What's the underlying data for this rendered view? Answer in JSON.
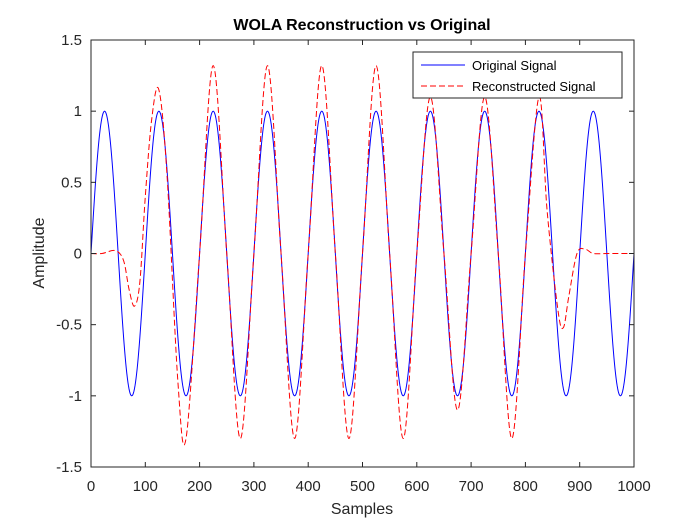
{
  "chart_data": {
    "type": "line",
    "title": "WOLA Reconstruction vs Original",
    "xlabel": "Samples",
    "ylabel": "Amplitude",
    "xlim": [
      0,
      1000
    ],
    "ylim": [
      -1.5,
      1.5
    ],
    "x_ticks": [
      "0",
      "100",
      "200",
      "300",
      "400",
      "500",
      "600",
      "700",
      "800",
      "900",
      "1000"
    ],
    "y_ticks": [
      "1.5",
      "1",
      "0.5",
      "0",
      "-0.5",
      "-1",
      "-1.5"
    ],
    "x_tick_values": [
      0,
      100,
      200,
      300,
      400,
      500,
      600,
      700,
      800,
      900,
      1000
    ],
    "y_tick_values": [
      1.5,
      1,
      0.5,
      0,
      -0.5,
      -1,
      -1.5
    ],
    "grid": false,
    "legend": "top-right",
    "series": [
      {
        "name": "Original Signal",
        "color": "#0000ff",
        "style": "solid",
        "kind": "sine",
        "amplitude": 1,
        "period": 100,
        "length": 1000,
        "x": [
          0,
          25,
          75,
          125,
          175,
          225,
          275,
          325,
          375,
          425,
          475,
          525,
          575,
          625,
          675,
          725,
          775,
          825,
          875,
          925,
          975,
          1000
        ],
        "values": [
          0,
          1,
          -1,
          1,
          -1,
          1,
          -1,
          1,
          -1,
          1,
          -1,
          1,
          -1,
          1,
          -1,
          1,
          -1,
          1,
          -1,
          1,
          -1,
          0
        ]
      },
      {
        "name": "Reconstructed Signal",
        "color": "#ff0000",
        "style": "dashed",
        "x": [
          0,
          20,
          45,
          60,
          70,
          80,
          90,
          100,
          112,
          125,
          140,
          160,
          175,
          200,
          225,
          250,
          275,
          300,
          325,
          350,
          375,
          400,
          425,
          450,
          475,
          500,
          525,
          550,
          575,
          600,
          625,
          650,
          675,
          700,
          725,
          750,
          775,
          800,
          825,
          840,
          860,
          870,
          880,
          895,
          910,
          925,
          950,
          1000
        ],
        "values": [
          0,
          0,
          0.02,
          -0.05,
          -0.25,
          -0.37,
          -0.2,
          0.4,
          0.95,
          1.15,
          0.55,
          -0.9,
          -1.3,
          0,
          1.32,
          0,
          -1.3,
          0,
          1.32,
          0,
          -1.3,
          0,
          1.32,
          0,
          -1.3,
          0,
          1.32,
          0,
          -1.3,
          0,
          1.1,
          0,
          -1.1,
          0,
          1.1,
          0,
          -1.3,
          0,
          1.1,
          0.3,
          -0.4,
          -0.52,
          -0.3,
          0,
          0.03,
          0,
          0,
          0
        ]
      }
    ]
  }
}
